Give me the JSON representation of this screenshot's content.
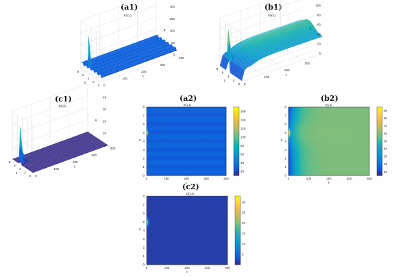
{
  "chart_data": [
    {
      "id": "a1",
      "type": "surface3d",
      "label": "(a1)",
      "title": "E(x,t)",
      "xlabel": "x",
      "ylabel": "t",
      "zlabel": "u",
      "xlim": [
        0,
        8
      ],
      "ylim": [
        0,
        400
      ],
      "zlim": [
        0,
        200
      ],
      "x_ticks": [
        "0",
        "2",
        "4",
        "6",
        "8"
      ],
      "t_ticks": [
        "0",
        "100",
        "200",
        "300",
        "400"
      ],
      "z_ticks": [
        "0",
        "50",
        "100",
        "150",
        "200"
      ],
      "peak": {
        "x": 5,
        "t": 0,
        "z": 160
      },
      "baseline_z": 30
    },
    {
      "id": "b1",
      "type": "surface3d",
      "label": "(b1)",
      "title": "V(x,t)",
      "xlabel": "x",
      "ylabel": "t",
      "zlabel": "v",
      "xlim": [
        0,
        8
      ],
      "ylim": [
        0,
        400
      ],
      "zlim": [
        0,
        100
      ],
      "x_ticks": [
        "0",
        "2",
        "4",
        "6",
        "8"
      ],
      "t_ticks": [
        "0",
        "100",
        "200",
        "300"
      ],
      "z_ticks": [
        "0",
        "20",
        "40",
        "60",
        "80",
        "100"
      ],
      "peak": {
        "x": 5,
        "t": 0,
        "z": 90
      },
      "plateau_z": 50
    },
    {
      "id": "c1",
      "type": "surface3d",
      "label": "(c1)",
      "title": "E(x,t)",
      "xlabel": "x",
      "ylabel": "t",
      "zlabel": "u",
      "xlim": [
        0,
        8
      ],
      "ylim": [
        0,
        400
      ],
      "zlim": [
        0,
        40
      ],
      "x_ticks": [
        "0",
        "2",
        "4",
        "6",
        "8"
      ],
      "t_ticks": [
        "0",
        "100",
        "200",
        "300",
        "400"
      ],
      "z_ticks": [
        "0",
        "10",
        "20",
        "30",
        "40"
      ],
      "peak": {
        "x": 5,
        "t": 0,
        "z": 32
      },
      "baseline_z": 0
    },
    {
      "id": "a2",
      "type": "heatmap",
      "label": "(a2)",
      "title": "E(x,t)",
      "xlabel": "t",
      "ylabel": "x",
      "xlim": [
        0,
        400
      ],
      "ylim": [
        0,
        8
      ],
      "x_ticks": [
        "0",
        "100",
        "200",
        "300",
        "400"
      ],
      "y_ticks": [
        "0",
        "1",
        "2",
        "3",
        "4",
        "5",
        "6",
        "7",
        "8"
      ],
      "colorbar_ticks": [
        "20",
        "40",
        "60",
        "80",
        "100",
        "120",
        "140",
        "160"
      ],
      "clim": [
        10,
        170
      ],
      "hotspot": {
        "t": 0,
        "x": 5
      }
    },
    {
      "id": "b2",
      "type": "heatmap",
      "label": "(b2)",
      "title": "V(x,t)",
      "xlabel": "t",
      "ylabel": "x",
      "xlim": [
        0,
        400
      ],
      "ylim": [
        0,
        8
      ],
      "x_ticks": [
        "0",
        "100",
        "200",
        "300",
        "400"
      ],
      "y_ticks": [
        "0",
        "1",
        "2",
        "3",
        "4",
        "5",
        "6",
        "7",
        "8"
      ],
      "colorbar_ticks": [
        "10",
        "20",
        "30",
        "40",
        "50",
        "60",
        "70",
        "80",
        "90"
      ],
      "clim": [
        5,
        95
      ],
      "hotspot": {
        "t": 0,
        "x": 5
      }
    },
    {
      "id": "c2",
      "type": "heatmap",
      "label": "(c2)",
      "title": "E(x,t)",
      "xlabel": "t",
      "ylabel": "x",
      "xlim": [
        0,
        400
      ],
      "ylim": [
        0,
        8
      ],
      "x_ticks": [
        "0",
        "100",
        "200",
        "300",
        "400"
      ],
      "y_ticks": [
        "0",
        "1",
        "2",
        "3",
        "4",
        "5",
        "6",
        "7",
        "8"
      ],
      "colorbar_ticks": [
        "5",
        "10",
        "15",
        "20",
        "25",
        "30"
      ],
      "clim": [
        0,
        33
      ],
      "hotspot": {
        "t": 0,
        "x": 5
      }
    }
  ]
}
